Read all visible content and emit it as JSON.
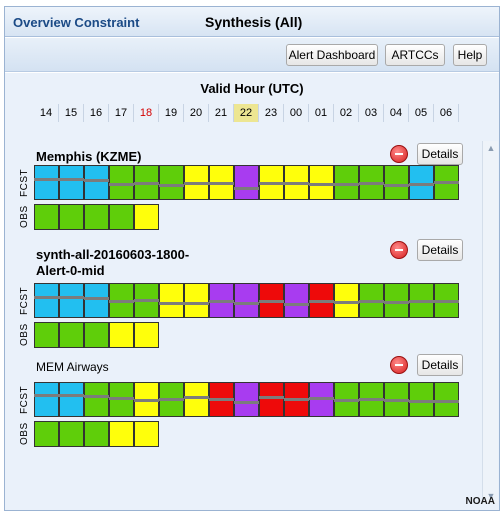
{
  "header": {
    "left_title": "Overview Constraint",
    "center_title": "Synthesis (All)"
  },
  "toolbar": {
    "alert_dashboard_label": "Alert Dashboard",
    "artccs_label": "ARTCCs",
    "help_label": "Help"
  },
  "valid_hour_label": "Valid Hour (UTC)",
  "hours": [
    "14",
    "15",
    "16",
    "17",
    "18",
    "19",
    "20",
    "21",
    "22",
    "23",
    "00",
    "01",
    "02",
    "03",
    "04",
    "05",
    "06"
  ],
  "hour_highlight": {
    "red": "18",
    "selected": "22"
  },
  "colors": {
    "blue": "#22bff0",
    "green": "#5fce0a",
    "yellow": "#ffff0b",
    "purple": "#a83cf0",
    "red": "#ee0a0a",
    "tick": "#7c7c7c"
  },
  "sections": [
    {
      "title": "Memphis (KZME)",
      "details_label": "Details",
      "fcst_label": "FCST",
      "obs_label": "OBS",
      "fcst": [
        "blue",
        "blue",
        "blue",
        "green",
        "green",
        "green",
        "yellow",
        "yellow",
        "purple",
        "yellow",
        "yellow",
        "yellow",
        "green",
        "green",
        "green",
        "blue",
        "green"
      ],
      "obs": [
        "green",
        "green",
        "green",
        "green",
        "yellow"
      ]
    },
    {
      "title": "synth-all-20160603-1800-Alert-0-mid",
      "title_line1": "synth-all-20160603-1800-",
      "title_line2": "Alert-0-mid",
      "details_label": "Details",
      "fcst_label": "FCST",
      "obs_label": "OBS",
      "fcst": [
        "blue",
        "blue",
        "blue",
        "green",
        "green",
        "yellow",
        "yellow",
        "purple",
        "purple",
        "red",
        "purple",
        "red",
        "yellow",
        "green",
        "green",
        "green",
        "green"
      ],
      "obs": [
        "green",
        "green",
        "green",
        "yellow",
        "yellow"
      ]
    },
    {
      "title": "MEM Airways",
      "details_label": "Details",
      "fcst_label": "FCST",
      "obs_label": "OBS",
      "fcst": [
        "blue",
        "blue",
        "green",
        "green",
        "yellow",
        "green",
        "yellow",
        "red",
        "purple",
        "red",
        "red",
        "purple",
        "green",
        "green",
        "green",
        "green",
        "green"
      ],
      "obs": [
        "green",
        "green",
        "green",
        "yellow",
        "yellow"
      ]
    }
  ],
  "footer": {
    "noaa": "NOAA"
  }
}
